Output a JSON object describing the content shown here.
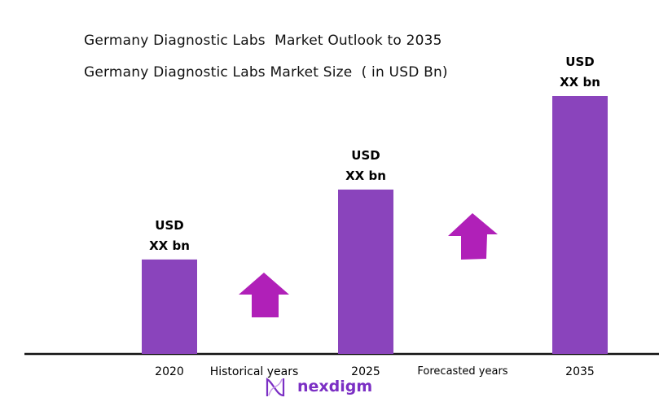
{
  "chart_data": {
    "type": "bar",
    "title": "Germany Diagnostic Labs  Market Outlook to 2035",
    "subtitle": "Germany Diagnostic Labs Market Size  ( in USD Bn)",
    "xlabel": "",
    "ylabel": "",
    "categories": [
      "2020",
      "2025",
      "2035"
    ],
    "values": [
      1.0,
      1.74,
      2.73
    ],
    "data_labels": [
      {
        "line1": "USD",
        "line2": "XX bn"
      },
      {
        "line1": "USD",
        "line2": "XX bn"
      },
      {
        "line1": "USD",
        "line2": "XX bn"
      }
    ],
    "annotations": [
      "Historical years",
      "Forecasted years"
    ],
    "grid": false,
    "ylim": [
      0,
      2.8
    ],
    "colors": {
      "bar": "#8a44bc",
      "arrow": "#b020b8",
      "axis": "#111111"
    }
  },
  "logo": {
    "text": "nexdigm",
    "color": "#7b2fc4"
  }
}
